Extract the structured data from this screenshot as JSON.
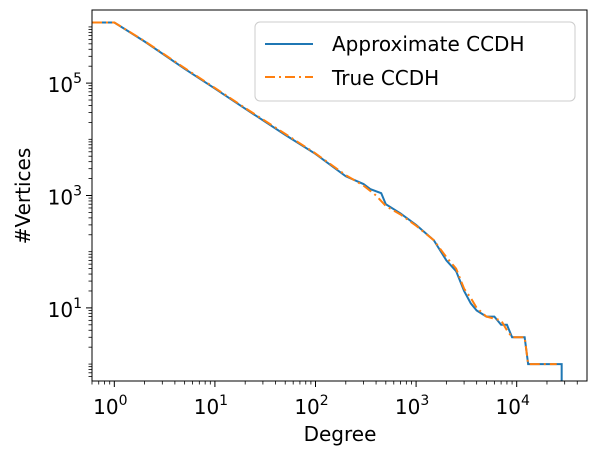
{
  "chart_data": {
    "type": "line",
    "xlabel": "Degree",
    "ylabel": "#Vertices",
    "x_scale": "log",
    "y_scale": "log",
    "xlim": [
      0.6,
      50000
    ],
    "ylim": [
      0.5,
      2000000
    ],
    "x_ticks": [
      {
        "value": 1,
        "base": "10",
        "exp": "0"
      },
      {
        "value": 10,
        "base": "10",
        "exp": "1"
      },
      {
        "value": 100,
        "base": "10",
        "exp": "2"
      },
      {
        "value": 1000,
        "base": "10",
        "exp": "3"
      },
      {
        "value": 10000,
        "base": "10",
        "exp": "4"
      }
    ],
    "y_ticks": [
      {
        "value": 10,
        "base": "10",
        "exp": "1"
      },
      {
        "value": 1000,
        "base": "10",
        "exp": "3"
      },
      {
        "value": 100000,
        "base": "10",
        "exp": "5"
      }
    ],
    "grid": false,
    "legend_position": "top-right",
    "series": [
      {
        "name": "Approximate CCDH",
        "color": "#1f77b4",
        "style": "solid",
        "points": [
          [
            0.6,
            1200000
          ],
          [
            1.0,
            1200000
          ],
          [
            2.0,
            550000
          ],
          [
            5.0,
            180000
          ],
          [
            10.0,
            80000
          ],
          [
            20.0,
            35000
          ],
          [
            50.0,
            12000
          ],
          [
            100.0,
            5500
          ],
          [
            200.0,
            2200
          ],
          [
            300.0,
            1600
          ],
          [
            350.0,
            1300
          ],
          [
            450.0,
            1100
          ],
          [
            500.0,
            700
          ],
          [
            700.0,
            480
          ],
          [
            1000.0,
            300
          ],
          [
            1500.0,
            160
          ],
          [
            2000.0,
            70
          ],
          [
            2500.0,
            45
          ],
          [
            3000.0,
            20
          ],
          [
            3500.0,
            12
          ],
          [
            4000.0,
            9
          ],
          [
            5000.0,
            7
          ],
          [
            6000.0,
            7
          ],
          [
            7000.0,
            5
          ],
          [
            8000.0,
            5
          ],
          [
            9000.0,
            3
          ],
          [
            10000.0,
            3
          ],
          [
            12000.0,
            3
          ],
          [
            13000.0,
            1
          ],
          [
            20000.0,
            1
          ],
          [
            28000.0,
            1
          ],
          [
            28000.0,
            0.5
          ]
        ]
      },
      {
        "name": "True CCDH",
        "color": "#ff7f0e",
        "style": "dashdot",
        "points": [
          [
            0.6,
            1200000
          ],
          [
            1.0,
            1200000
          ],
          [
            2.0,
            560000
          ],
          [
            5.0,
            185000
          ],
          [
            10.0,
            82000
          ],
          [
            20.0,
            36000
          ],
          [
            50.0,
            12500
          ],
          [
            100.0,
            5600
          ],
          [
            200.0,
            2300
          ],
          [
            300.0,
            1500
          ],
          [
            400.0,
            1000
          ],
          [
            500.0,
            650
          ],
          [
            700.0,
            460
          ],
          [
            1000.0,
            290
          ],
          [
            1500.0,
            160
          ],
          [
            2000.0,
            80
          ],
          [
            2500.0,
            50
          ],
          [
            3000.0,
            22
          ],
          [
            3500.0,
            15
          ],
          [
            4000.0,
            10
          ],
          [
            5000.0,
            7
          ],
          [
            7000.0,
            6
          ],
          [
            8000.0,
            4
          ],
          [
            9000.0,
            3
          ],
          [
            12000.0,
            3
          ],
          [
            13000.0,
            1
          ],
          [
            25000.0,
            1
          ]
        ]
      }
    ]
  }
}
